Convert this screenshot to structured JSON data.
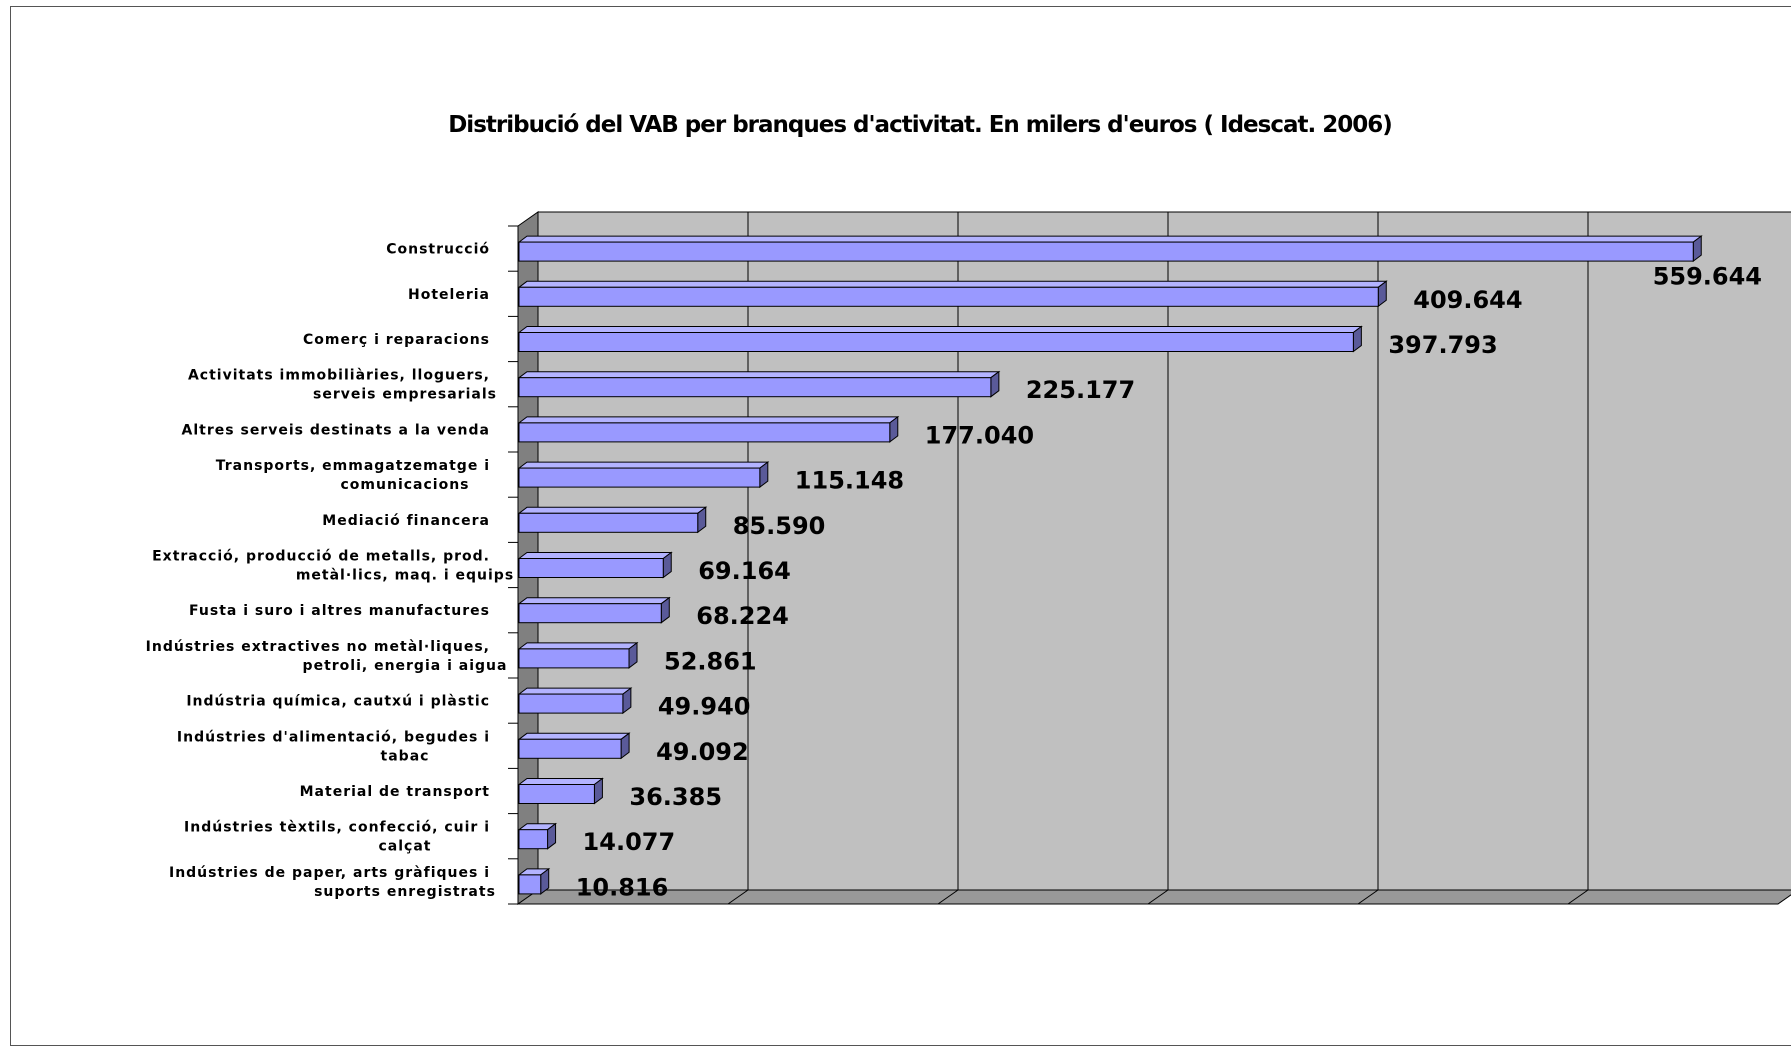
{
  "chart_data": {
    "type": "bar",
    "orientation": "horizontal",
    "title": "Distribució del VAB per branques d'activitat. En milers d'euros ( Idescat. 2006)",
    "xlabel": "",
    "ylabel": "",
    "xlim": [
      0,
      600000
    ],
    "grid": true,
    "legend": "none",
    "colors": {
      "bar_front": "#9999ff",
      "bar_top": "#b3b3ff",
      "bar_side": "#5a5a99",
      "plot_back": "#c0c0c0",
      "floor": "#999999",
      "wall": "#808080"
    },
    "categories": [
      [
        "Construcció"
      ],
      [
        "Hoteleria"
      ],
      [
        "Comerç i reparacions"
      ],
      [
        "Activitats immobiliàries, lloguers,",
        "serveis empresarials"
      ],
      [
        "Altres serveis destinats a la venda"
      ],
      [
        "Transports, emmagatzematge i",
        "comunicacions"
      ],
      [
        "Mediació financera"
      ],
      [
        "Extracció, producció de metalls, prod.",
        "metàl·lics, maq. i equips"
      ],
      [
        "Fusta i suro i altres manufactures"
      ],
      [
        "Indústries extractives no metàl·liques,",
        "petroli, energia i aigua"
      ],
      [
        "Indústria química, cautxú i plàstic"
      ],
      [
        "Indústries d'alimentació, begudes i",
        "tabac"
      ],
      [
        "Material de transport"
      ],
      [
        "Indústries tèxtils, confecció, cuir i",
        "calçat"
      ],
      [
        "Indústries de paper, arts gràfiques i",
        "suports enregistrats"
      ]
    ],
    "values": [
      559644,
      409644,
      397793,
      225177,
      177040,
      115148,
      85590,
      69164,
      68224,
      52861,
      49940,
      49092,
      36385,
      14077,
      10816
    ],
    "data_labels": [
      "559.644",
      "409.644",
      "397.793",
      "225.177",
      "177.040",
      "115.148",
      "85.590",
      "69.164",
      "68.224",
      "52.861",
      "49.940",
      "49.092",
      "36.385",
      "14.077",
      "10.816"
    ]
  }
}
